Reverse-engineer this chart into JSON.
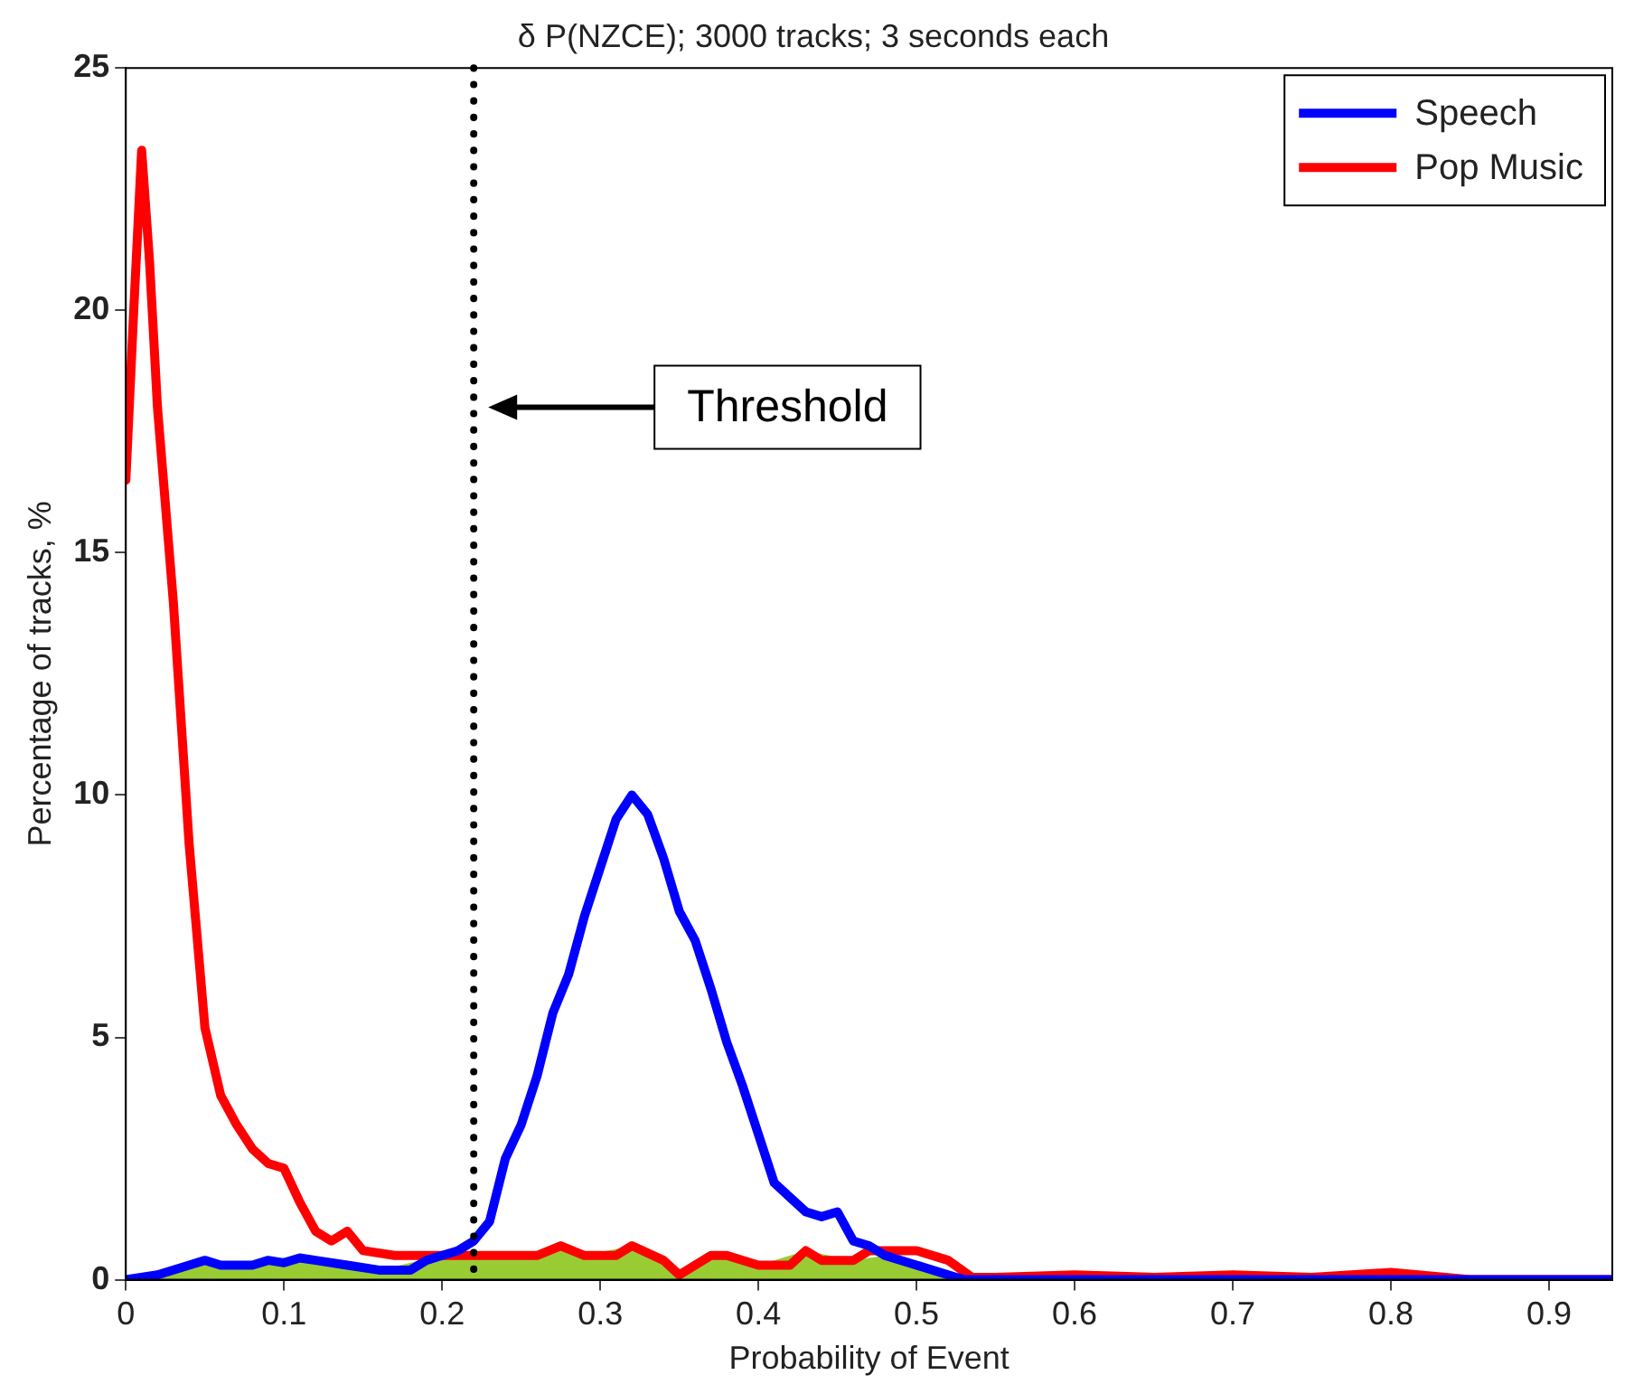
{
  "chart_data": {
    "type": "line",
    "title": "δ P(NZCE); 3000 tracks; 3 seconds each",
    "xlabel": "Probability of Event",
    "ylabel": "Percentage of tracks, %",
    "xlim": [
      0,
      0.94
    ],
    "xticks": [
      0,
      0.1,
      0.2,
      0.3,
      0.4,
      0.5,
      0.6,
      0.7,
      0.8,
      0.9
    ],
    "ylim": [
      0,
      25
    ],
    "yticks": [
      0,
      5,
      10,
      15,
      20,
      25
    ],
    "grid": false,
    "legend": "top right",
    "marker": "none",
    "line_style": "solid",
    "ref_lines": [
      {
        "axis": "x",
        "value": 0.22,
        "color": "#000000",
        "line_style": "dotted"
      }
    ],
    "annotations": [
      "Threshold"
    ],
    "series": [
      {
        "type": "area",
        "color": "#99cc33",
        "x": [
          0,
          0.05,
          0.08,
          0.1,
          0.11,
          0.14,
          0.16,
          0.2,
          0.26,
          0.275,
          0.29,
          0.32,
          0.35,
          0.37,
          0.4,
          0.43,
          0.46,
          0.48,
          0.5,
          0.52,
          0.53
        ],
        "values": [
          0,
          0.4,
          0.3,
          0.35,
          0.45,
          0.3,
          0.2,
          0.5,
          0.5,
          0.7,
          0.5,
          0.7,
          0.1,
          0.5,
          0.3,
          0.6,
          0.4,
          0.5,
          0.3,
          0.1,
          0
        ]
      },
      {
        "name": "Speech",
        "color": "#0000ff",
        "x": [
          0,
          0.02,
          0.04,
          0.05,
          0.06,
          0.08,
          0.09,
          0.1,
          0.11,
          0.12,
          0.14,
          0.16,
          0.18,
          0.19,
          0.2,
          0.21,
          0.22,
          0.23,
          0.24,
          0.25,
          0.26,
          0.27,
          0.28,
          0.29,
          0.3,
          0.31,
          0.32,
          0.33,
          0.34,
          0.35,
          0.36,
          0.37,
          0.38,
          0.39,
          0.4,
          0.41,
          0.42,
          0.43,
          0.44,
          0.45,
          0.46,
          0.47,
          0.48,
          0.5,
          0.52,
          0.53,
          0.6,
          0.94
        ],
        "values": [
          0,
          0.1,
          0.3,
          0.4,
          0.3,
          0.3,
          0.4,
          0.35,
          0.45,
          0.4,
          0.3,
          0.2,
          0.2,
          0.4,
          0.5,
          0.6,
          0.8,
          1.2,
          2.5,
          3.2,
          4.2,
          5.5,
          6.3,
          7.5,
          8.5,
          9.5,
          10,
          9.6,
          8.7,
          7.6,
          7,
          6,
          4.9,
          4,
          3,
          2,
          1.7,
          1.4,
          1.3,
          1.4,
          0.8,
          0.7,
          0.5,
          0.3,
          0.1,
          0,
          0,
          0
        ]
      },
      {
        "name": "Pop Music",
        "color": "#ff0000",
        "x": [
          0,
          0.005,
          0.01,
          0.015,
          0.02,
          0.03,
          0.04,
          0.05,
          0.06,
          0.07,
          0.08,
          0.09,
          0.1,
          0.11,
          0.12,
          0.13,
          0.14,
          0.15,
          0.17,
          0.2,
          0.26,
          0.275,
          0.29,
          0.31,
          0.32,
          0.34,
          0.35,
          0.37,
          0.38,
          0.4,
          0.42,
          0.43,
          0.44,
          0.46,
          0.47,
          0.5,
          0.52,
          0.535,
          0.55,
          0.6,
          0.65,
          0.7,
          0.75,
          0.8,
          0.85,
          0.94
        ],
        "values": [
          16.5,
          20,
          23.3,
          21,
          18,
          14,
          9,
          5.2,
          3.8,
          3.2,
          2.7,
          2.4,
          2.3,
          1.6,
          1,
          0.8,
          1,
          0.6,
          0.5,
          0.5,
          0.5,
          0.7,
          0.5,
          0.5,
          0.7,
          0.4,
          0.1,
          0.5,
          0.5,
          0.3,
          0.3,
          0.6,
          0.4,
          0.4,
          0.6,
          0.6,
          0.4,
          0.05,
          0.05,
          0.1,
          0.05,
          0.1,
          0.05,
          0.15,
          0,
          0
        ]
      }
    ]
  }
}
